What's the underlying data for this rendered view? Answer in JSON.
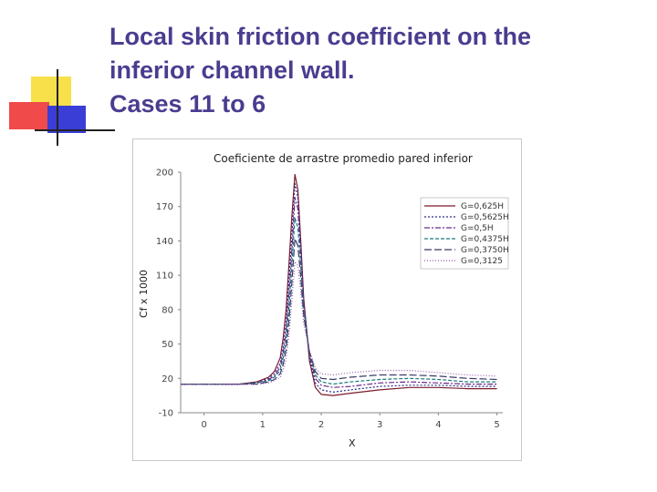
{
  "slide": {
    "title": "Local skin friction coefficient on the\ninferior channel wall.\nCases 11 to 6"
  },
  "colors": {
    "title": "#4a3d8f",
    "deco_yellow": "#f7e04a",
    "deco_red": "#f04a4a",
    "deco_blue": "#3a3ed6"
  },
  "chart_data": {
    "type": "line",
    "title": "Coeficiente de arrastre promedio pared inferior",
    "xlabel": "X",
    "ylabel": "Cf x 1000",
    "xlim": [
      -0.4,
      5.1
    ],
    "ylim": [
      -10,
      200
    ],
    "xticks": [
      0,
      1,
      2,
      3,
      4,
      5
    ],
    "yticks": [
      -10,
      20,
      50,
      80,
      110,
      140,
      170,
      200
    ],
    "grid": false,
    "legend": "top-right",
    "x": [
      -0.4,
      0.2,
      0.6,
      0.9,
      1.1,
      1.2,
      1.3,
      1.35,
      1.4,
      1.45,
      1.5,
      1.55,
      1.6,
      1.65,
      1.7,
      1.8,
      1.9,
      2.0,
      2.2,
      2.5,
      3.0,
      3.5,
      4.0,
      4.5,
      5.0
    ],
    "series": [
      {
        "name": "G=0,625H",
        "color": "#7a1a2a",
        "dash": "none",
        "values": [
          15,
          15,
          15,
          17,
          21,
          26,
          38,
          55,
          80,
          120,
          162,
          198,
          185,
          140,
          90,
          35,
          12,
          6,
          5,
          7,
          10,
          12,
          12,
          11,
          11
        ]
      },
      {
        "name": "G=0,5625H",
        "color": "#2a2a8a",
        "dash": "2,2",
        "values": [
          15,
          15,
          15,
          16,
          20,
          24,
          33,
          47,
          68,
          105,
          145,
          190,
          178,
          135,
          88,
          38,
          16,
          10,
          8,
          10,
          13,
          14,
          14,
          13,
          13
        ]
      },
      {
        "name": "G=0,5H",
        "color": "#6a2a8a",
        "dash": "6,2,2,2",
        "values": [
          15,
          15,
          15,
          16,
          19,
          22,
          30,
          42,
          60,
          94,
          132,
          178,
          168,
          128,
          85,
          40,
          20,
          14,
          12,
          13,
          16,
          17,
          16,
          15,
          15
        ]
      },
      {
        "name": "G=0,4375H",
        "color": "#1a7a7a",
        "dash": "4,2",
        "values": [
          15,
          15,
          15,
          16,
          18,
          21,
          27,
          38,
          52,
          82,
          120,
          160,
          152,
          118,
          80,
          42,
          23,
          17,
          15,
          17,
          19,
          20,
          19,
          17,
          17
        ]
      },
      {
        "name": "G=0,3750H",
        "color": "#3a3a6a",
        "dash": "8,3",
        "values": [
          15,
          15,
          15,
          15,
          17,
          19,
          24,
          32,
          45,
          70,
          104,
          142,
          136,
          108,
          75,
          43,
          26,
          20,
          19,
          21,
          23,
          23,
          22,
          20,
          19
        ]
      },
      {
        "name": "G=0,3125",
        "color": "#9a5aaa",
        "dash": "1,2",
        "values": [
          15,
          15,
          15,
          15,
          16,
          18,
          21,
          27,
          37,
          58,
          88,
          122,
          118,
          96,
          68,
          44,
          29,
          24,
          23,
          25,
          27,
          27,
          25,
          23,
          22
        ]
      }
    ]
  }
}
